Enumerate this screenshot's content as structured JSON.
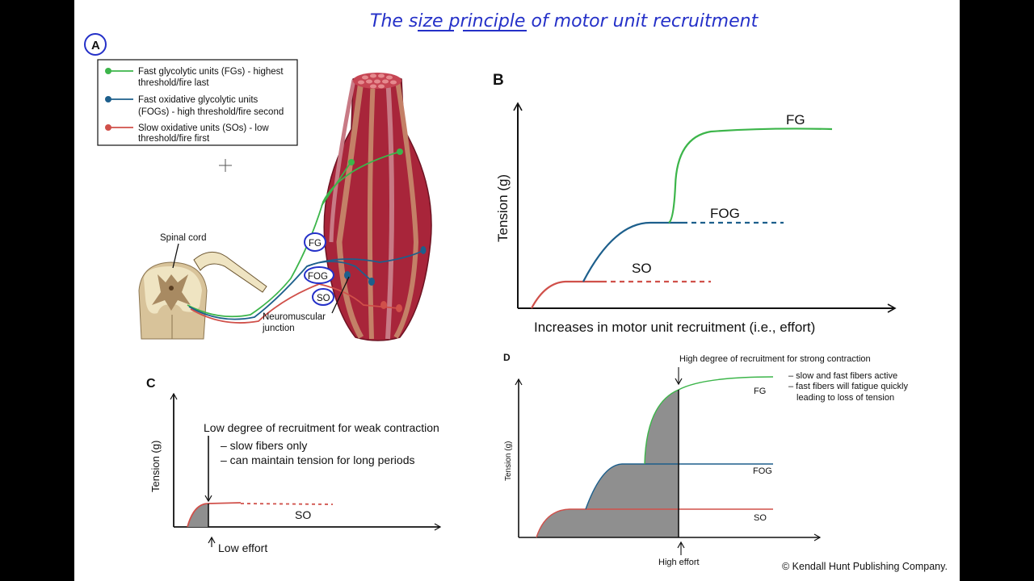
{
  "handwritten_title": "The size principle of motor unit recruitment",
  "colors": {
    "fg": "#3cb54a",
    "fog": "#1d5f8c",
    "so": "#d0504a",
    "ink": "#2430c8",
    "muscle": "#a8253a",
    "fill_gray": "#8f8f8f"
  },
  "panel_a": {
    "label": "A",
    "legend": [
      {
        "line1": "Fast glycolytic units (FGs) - highest",
        "line2": "threshold/fire last",
        "color": "#3cb54a"
      },
      {
        "line1": "Fast oxidative glycolytic units",
        "line2": "(FOGs) - high threshold/fire second",
        "color": "#1d5f8c"
      },
      {
        "line1": "Slow oxidative units (SOs) - low",
        "line2": "threshold/fire first",
        "color": "#d0504a"
      }
    ],
    "spinal_cord_label": "Spinal cord",
    "nmj_label_1": "Neuromuscular",
    "nmj_label_2": "junction",
    "circled": [
      "FG",
      "FOG",
      "SO"
    ]
  },
  "panel_b": {
    "label": "B",
    "ylabel": "Tension (g)",
    "xlabel": "Increases in motor unit recruitment (i.e., effort)",
    "curves": [
      "FG",
      "FOG",
      "SO"
    ]
  },
  "panel_c": {
    "label": "C",
    "ylabel": "Tension (g)",
    "heading": "Low degree of recruitment for weak contraction",
    "bullets": [
      "– slow fibers only",
      "– can maintain tension for long periods"
    ],
    "curve": "SO",
    "marker": "Low effort"
  },
  "panel_d": {
    "label": "D",
    "ylabel": "Tension (g)",
    "heading": "High degree of recruitment for strong contraction",
    "bullets": [
      "– slow and fast fibers active",
      "– fast fibers will fatigue quickly",
      "leading to loss of tension"
    ],
    "curves": [
      "FG",
      "FOG",
      "SO"
    ],
    "marker": "High effort"
  },
  "copyright": "© Kendall Hunt Publishing Company."
}
